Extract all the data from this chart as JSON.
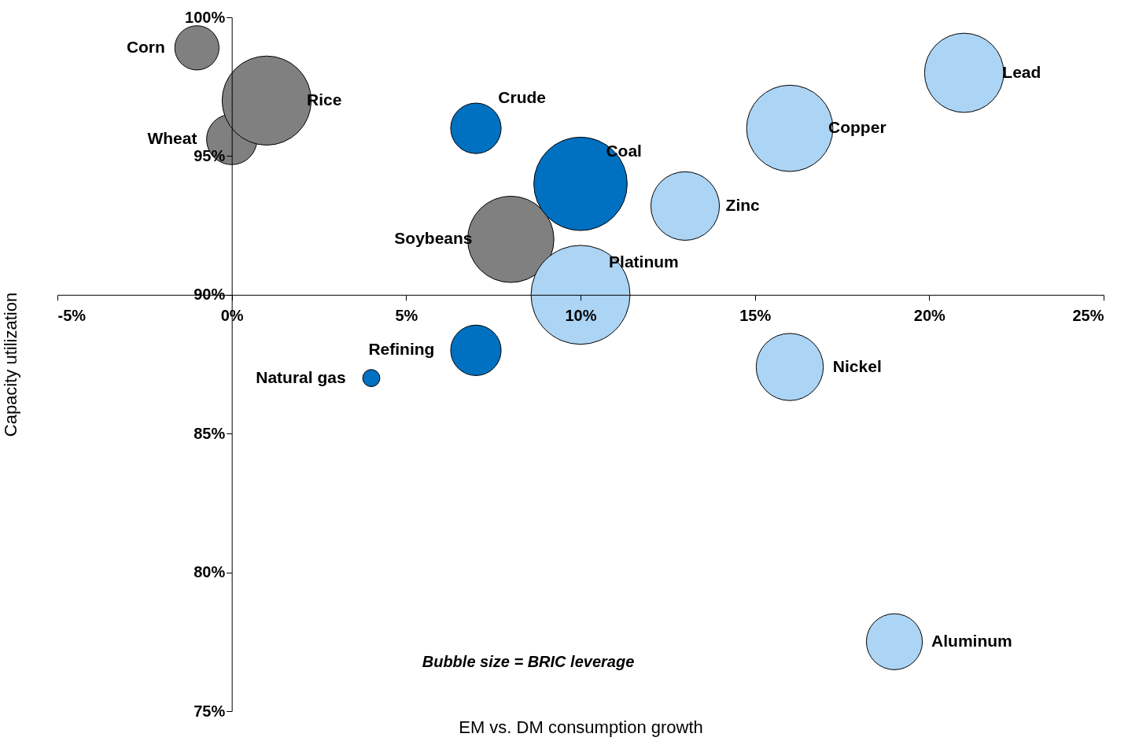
{
  "chart_data": {
    "type": "bubble",
    "xlabel": "EM vs. DM consumption growth",
    "ylabel": "Capacity utilization",
    "xlim": [
      -5,
      25
    ],
    "ylim": [
      75,
      100
    ],
    "xticks": [
      {
        "value": -5,
        "label": "-5%"
      },
      {
        "value": 0,
        "label": "0%"
      },
      {
        "value": 5,
        "label": "5%"
      },
      {
        "value": 10,
        "label": "10%"
      },
      {
        "value": 15,
        "label": "15%"
      },
      {
        "value": 20,
        "label": "20%"
      },
      {
        "value": 25,
        "label": "25%"
      }
    ],
    "yticks": [
      {
        "value": 75,
        "label": "75%"
      },
      {
        "value": 80,
        "label": "80%"
      },
      {
        "value": 85,
        "label": "85%"
      },
      {
        "value": 90,
        "label": "90%"
      },
      {
        "value": 95,
        "label": "95%"
      },
      {
        "value": 100,
        "label": "100%"
      }
    ],
    "grid": false,
    "legend": false,
    "marker": "circle",
    "series": [
      {
        "color": "#808080",
        "x": [
          -1,
          0,
          1,
          8
        ],
        "values": [
          98.9,
          95.6,
          97,
          92
        ],
        "sizes": [
          0.2,
          0.26,
          0.81,
          0.76
        ]
      },
      {
        "color": "#0070c0",
        "x": [
          7,
          10,
          7,
          4
        ],
        "values": [
          96,
          94,
          88,
          87
        ],
        "sizes": [
          0.26,
          0.89,
          0.26,
          0.03
        ]
      },
      {
        "color": "#acd4f4",
        "x": [
          10,
          13,
          16,
          21,
          16,
          19
        ],
        "values": [
          90,
          93.2,
          96,
          98,
          87.4,
          77.5
        ],
        "sizes": [
          1,
          0.48,
          0.76,
          0.64,
          0.46,
          0.32
        ]
      }
    ],
    "annotations": [
      {
        "text": "Corn",
        "x": -1,
        "y": 98.9
      },
      {
        "text": "Rice",
        "x": 1,
        "y": 97
      },
      {
        "text": "Wheat",
        "x": 0,
        "y": 95.6
      },
      {
        "text": "Crude",
        "x": 7,
        "y": 96
      },
      {
        "text": "Coal",
        "x": 10,
        "y": 94
      },
      {
        "text": "Soybeans",
        "x": 8,
        "y": 92
      },
      {
        "text": "Platinum",
        "x": 10,
        "y": 90
      },
      {
        "text": "Zinc",
        "x": 13,
        "y": 93.2
      },
      {
        "text": "Copper",
        "x": 16,
        "y": 96
      },
      {
        "text": "Lead",
        "x": 21,
        "y": 98
      },
      {
        "text": "Nickel",
        "x": 16,
        "y": 87.4
      },
      {
        "text": "Refining",
        "x": 7,
        "y": 88
      },
      {
        "text": "Natural gas",
        "x": 4,
        "y": 87
      },
      {
        "text": "Aluminum",
        "x": 19,
        "y": 77.5
      },
      "Bubble size = BRIC leverage"
    ]
  }
}
